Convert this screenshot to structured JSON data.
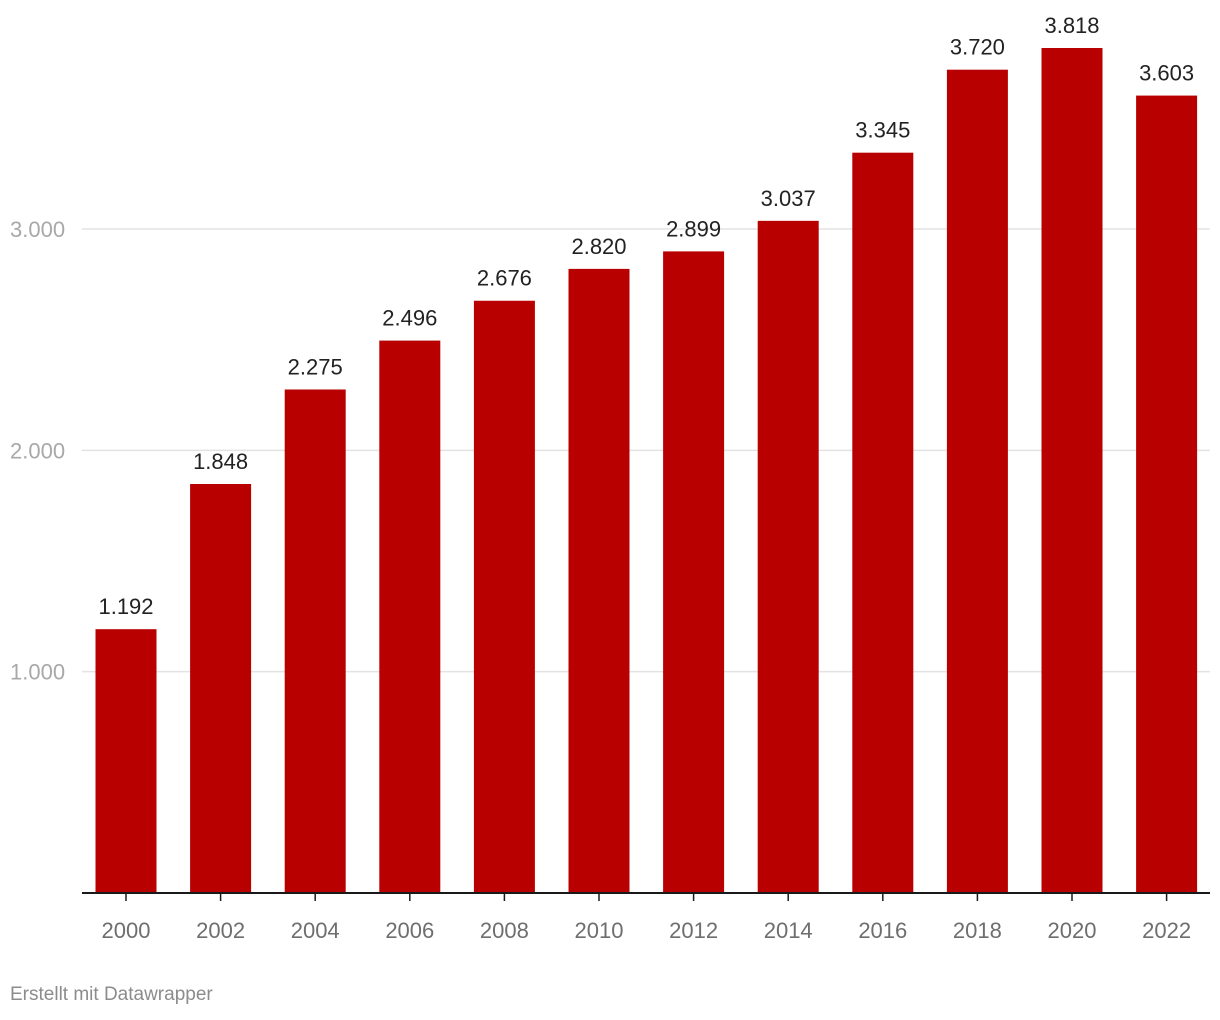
{
  "chart_data": {
    "type": "bar",
    "categories": [
      "2000",
      "2002",
      "2004",
      "2006",
      "2008",
      "2010",
      "2012",
      "2014",
      "2016",
      "2018",
      "2020",
      "2022"
    ],
    "values": [
      1192,
      1848,
      2275,
      2496,
      2676,
      2820,
      2899,
      3037,
      3345,
      3720,
      3818,
      3603
    ],
    "value_labels": [
      "1.192",
      "1.848",
      "2.275",
      "2.496",
      "2.676",
      "2.820",
      "2.899",
      "3.037",
      "3.345",
      "3.720",
      "3.818",
      "3.603"
    ],
    "title": "",
    "xlabel": "",
    "ylabel": "",
    "ylim": [
      0,
      3818
    ],
    "y_ticks": [
      1000,
      2000,
      3000
    ],
    "y_tick_labels": [
      "1.000",
      "2.000",
      "3.000"
    ],
    "grid": true,
    "bar_color": "#b80000"
  },
  "footer": {
    "credit": "Erstellt mit Datawrapper"
  }
}
